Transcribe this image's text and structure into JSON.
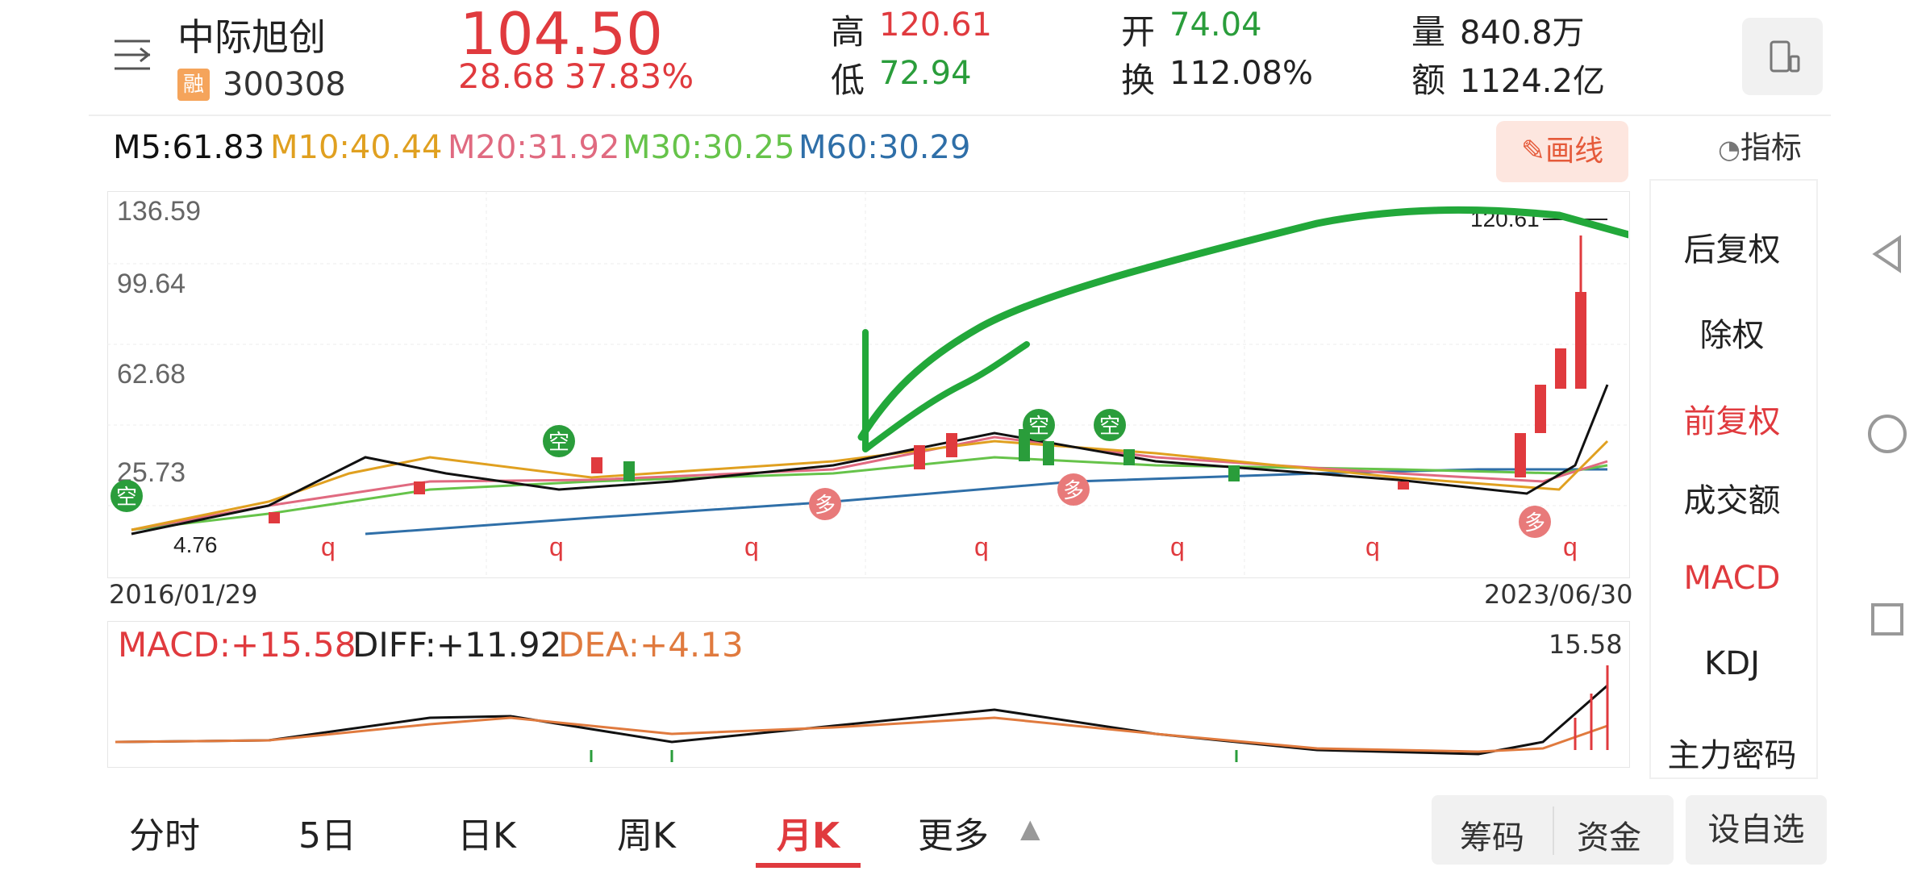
{
  "header": {
    "stock_name": "中际旭创",
    "margin_badge": "融",
    "stock_code": "300308",
    "price": "104.50",
    "change": "28.68",
    "change_pct": "37.83%",
    "high_label": "高",
    "high": "120.61",
    "low_label": "低",
    "low": "72.94",
    "open_label": "开",
    "open": "74.04",
    "turnover_label": "换",
    "turnover": "112.08%",
    "volume_label": "量",
    "volume": "840.8万",
    "amount_label": "额",
    "amount": "1124.2亿"
  },
  "ma": {
    "m5": "M5:61.83",
    "m10": "M10:40.44",
    "m20": "M20:31.92",
    "m30": "M30:30.25",
    "m60": "M60:30.29"
  },
  "toolbar": {
    "draw_label": "画线",
    "indicator_label": "指标"
  },
  "side_menu": [
    "后复权",
    "除权",
    "前复权",
    "成交额",
    "MACD",
    "KDJ",
    "主力密码"
  ],
  "chart": {
    "y_labels": [
      "136.59",
      "99.64",
      "62.68",
      "25.73"
    ],
    "low_label": "4.76",
    "high_marker": "120.61",
    "start_date": "2016/01/29",
    "end_date": "2023/06/30",
    "macd_max": "15.58"
  },
  "macd": {
    "macd": "MACD:+15.58",
    "diff": "DIFF:+11.92",
    "dea": "DEA:+4.13"
  },
  "tabs": [
    "分时",
    "5日",
    "日K",
    "周K",
    "月K",
    "更多"
  ],
  "buttons": {
    "chips": "筹码",
    "funds": "资金",
    "add_watch": "设自选"
  },
  "signals": {
    "kong": "空",
    "duo": "多",
    "q": "q"
  },
  "colors": {
    "up": "#e03a3e",
    "down": "#2a9d3b",
    "m10": "#e0a020",
    "m20": "#e06a80",
    "m30": "#66c34a",
    "m60": "#2f6fa8"
  }
}
